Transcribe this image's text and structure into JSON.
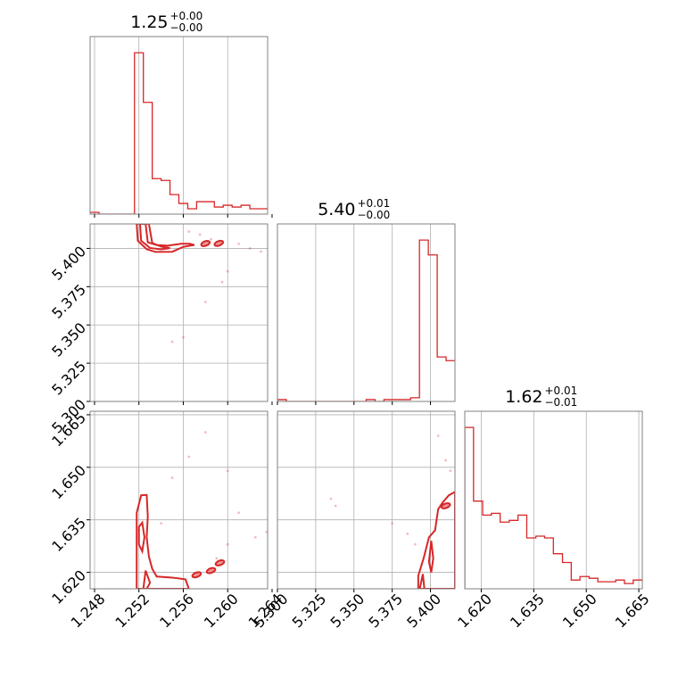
{
  "colors": {
    "line": "#d62728",
    "fill_outer": "#f6c9ca",
    "fill_inner": "#ec9597",
    "grid": "#b0b0b0"
  },
  "params": [
    {
      "title_value": "1.25",
      "title_plus": "+0.00",
      "title_minus": "−0.00",
      "ticks": [
        1.248,
        1.252,
        1.256,
        1.26,
        1.264
      ],
      "tick_labels": [
        "1.248",
        "1.252",
        "1.256",
        "1.260",
        "1.264"
      ],
      "range": [
        1.2476,
        1.2636
      ]
    },
    {
      "title_value": "5.40",
      "title_plus": "+0.01",
      "title_minus": "−0.00",
      "ticks": [
        5.3,
        5.325,
        5.35,
        5.375,
        5.4
      ],
      "tick_labels": [
        "5.300",
        "5.325",
        "5.350",
        "5.375",
        "5.400"
      ],
      "range": [
        5.3,
        5.416
      ]
    },
    {
      "title_value": "1.62",
      "title_plus": "+0.01",
      "title_minus": "−0.01",
      "ticks": [
        1.62,
        1.635,
        1.65,
        1.665
      ],
      "tick_labels": [
        "1.620",
        "1.635",
        "1.650",
        "1.665"
      ],
      "range": [
        1.6153,
        1.666
      ]
    }
  ],
  "chart_data": {
    "type": "corner",
    "histograms": [
      {
        "param": 0,
        "bin_edges": [
          1.2476,
          1.2484,
          1.2492,
          1.25,
          1.2508,
          1.2516,
          1.2524,
          1.2532,
          1.254,
          1.2548,
          1.2556,
          1.2564,
          1.2572,
          1.258,
          1.2588,
          1.2596,
          1.2604,
          1.2612,
          1.262,
          1.2628,
          1.2636
        ],
        "counts": [
          1,
          0,
          0,
          0,
          0,
          91,
          63,
          20,
          19,
          11,
          6,
          3,
          7,
          7,
          4,
          5,
          4,
          5,
          3,
          3
        ]
      },
      {
        "param": 1,
        "bin_edges": [
          5.3,
          5.3058,
          5.3116,
          5.3174,
          5.3232,
          5.329,
          5.3348,
          5.3406,
          5.3464,
          5.3522,
          5.358,
          5.3638,
          5.3696,
          5.3754,
          5.3812,
          5.387,
          5.3928,
          5.3986,
          5.4044,
          5.4102,
          5.416
        ],
        "counts": [
          1,
          0,
          0,
          0,
          0,
          0,
          0,
          0,
          0,
          0,
          1,
          0,
          1,
          1,
          1,
          2,
          87,
          79,
          24,
          22
        ]
      },
      {
        "param": 2,
        "bin_edges": [
          1.6153,
          1.6178,
          1.6204,
          1.6229,
          1.6254,
          1.628,
          1.6305,
          1.633,
          1.6356,
          1.6381,
          1.6406,
          1.6432,
          1.6457,
          1.6482,
          1.6508,
          1.6533,
          1.6558,
          1.6584,
          1.6609,
          1.6634,
          1.666
        ],
        "counts": [
          92,
          50,
          42,
          43,
          38,
          39,
          42,
          29,
          30,
          29,
          20,
          15,
          5,
          7,
          6,
          4,
          4,
          5,
          3,
          5
        ]
      }
    ],
    "panels_2d": [
      {
        "x_param": 0,
        "y_param": 1,
        "outer": [
          [
            1.2518,
            5.416
          ],
          [
            1.2519,
            5.405
          ],
          [
            1.2527,
            5.3995
          ],
          [
            1.2535,
            5.3977
          ],
          [
            1.255,
            5.3978
          ],
          [
            1.256,
            5.401
          ],
          [
            1.2566,
            5.4018
          ],
          [
            1.257,
            5.4022
          ],
          [
            1.2566,
            5.403
          ],
          [
            1.2558,
            5.403
          ],
          [
            1.2546,
            5.4018
          ],
          [
            1.2536,
            5.4022
          ],
          [
            1.2528,
            5.404
          ],
          [
            1.2526,
            5.416
          ]
        ],
        "inner": [
          [
            1.2521,
            5.416
          ],
          [
            1.2522,
            5.405
          ],
          [
            1.253,
            5.4003
          ],
          [
            1.254,
            5.3994
          ],
          [
            1.2548,
            5.4002
          ],
          [
            1.254,
            5.4012
          ],
          [
            1.2532,
            5.4035
          ],
          [
            1.2529,
            5.416
          ]
        ],
        "islands": [
          [
            1.258,
            5.4032
          ],
          [
            1.2592,
            5.4033
          ]
        ],
        "points": [
          [
            1.2565,
            5.411
          ],
          [
            1.2575,
            5.409
          ],
          [
            1.2585,
            5.406
          ],
          [
            1.261,
            5.403
          ],
          [
            1.262,
            5.4
          ],
          [
            1.263,
            5.398
          ],
          [
            1.26,
            5.385
          ],
          [
            1.2595,
            5.378
          ],
          [
            1.258,
            5.365
          ],
          [
            1.256,
            5.342
          ],
          [
            1.255,
            5.339
          ]
        ]
      },
      {
        "x_param": 0,
        "y_param": 2,
        "outer": [
          [
            1.2518,
            1.637
          ],
          [
            1.2522,
            1.642
          ],
          [
            1.2527,
            1.6421
          ],
          [
            1.2528,
            1.636
          ],
          [
            1.2527,
            1.63
          ],
          [
            1.2529,
            1.6245
          ],
          [
            1.2532,
            1.621
          ],
          [
            1.2536,
            1.6188
          ],
          [
            1.255,
            1.6185
          ],
          [
            1.2562,
            1.618
          ],
          [
            1.2565,
            1.6153
          ],
          [
            1.2518,
            1.6153
          ]
        ],
        "inner": [
          [
            1.252,
            1.633
          ],
          [
            1.2523,
            1.6342
          ],
          [
            1.2525,
            1.63
          ],
          [
            1.2523,
            1.626
          ],
          [
            1.252,
            1.628
          ]
        ],
        "inner2": [
          [
            1.2524,
            1.6153
          ],
          [
            1.2526,
            1.6205
          ],
          [
            1.253,
            1.617
          ],
          [
            1.2527,
            1.6153
          ]
        ],
        "islands": [
          [
            1.2572,
            1.6193
          ],
          [
            1.2585,
            1.6205
          ],
          [
            1.2593,
            1.6227
          ]
        ],
        "points": [
          [
            1.255,
            1.647
          ],
          [
            1.2565,
            1.653
          ],
          [
            1.258,
            1.66
          ],
          [
            1.26,
            1.649
          ],
          [
            1.261,
            1.637
          ],
          [
            1.2625,
            1.63
          ],
          [
            1.2635,
            1.6315
          ],
          [
            1.26,
            1.628
          ],
          [
            1.259,
            1.624
          ],
          [
            1.252,
            1.632
          ],
          [
            1.254,
            1.634
          ]
        ]
      },
      {
        "x_param": 1,
        "y_param": 2,
        "outer": [
          [
            5.392,
            1.6153
          ],
          [
            5.392,
            1.619
          ],
          [
            5.3955,
            1.624
          ],
          [
            5.399,
            1.63
          ],
          [
            5.403,
            1.632
          ],
          [
            5.405,
            1.638
          ],
          [
            5.408,
            1.64
          ],
          [
            5.412,
            1.642
          ],
          [
            5.416,
            1.643
          ],
          [
            5.416,
            1.6153
          ]
        ],
        "inner": [
          [
            5.399,
            1.623
          ],
          [
            5.4005,
            1.629
          ],
          [
            5.4018,
            1.624
          ],
          [
            5.4005,
            1.62
          ]
        ],
        "inner2": [
          [
            5.393,
            1.6153
          ],
          [
            5.395,
            1.6195
          ],
          [
            5.396,
            1.6153
          ]
        ],
        "islands": [
          [
            5.41,
            1.639
          ]
        ],
        "points": [
          [
            5.335,
            1.641
          ],
          [
            5.338,
            1.639
          ],
          [
            5.375,
            1.634
          ],
          [
            5.385,
            1.631
          ],
          [
            5.39,
            1.628
          ],
          [
            5.405,
            1.659
          ],
          [
            5.41,
            1.652
          ],
          [
            5.413,
            1.649
          ]
        ]
      }
    ]
  }
}
